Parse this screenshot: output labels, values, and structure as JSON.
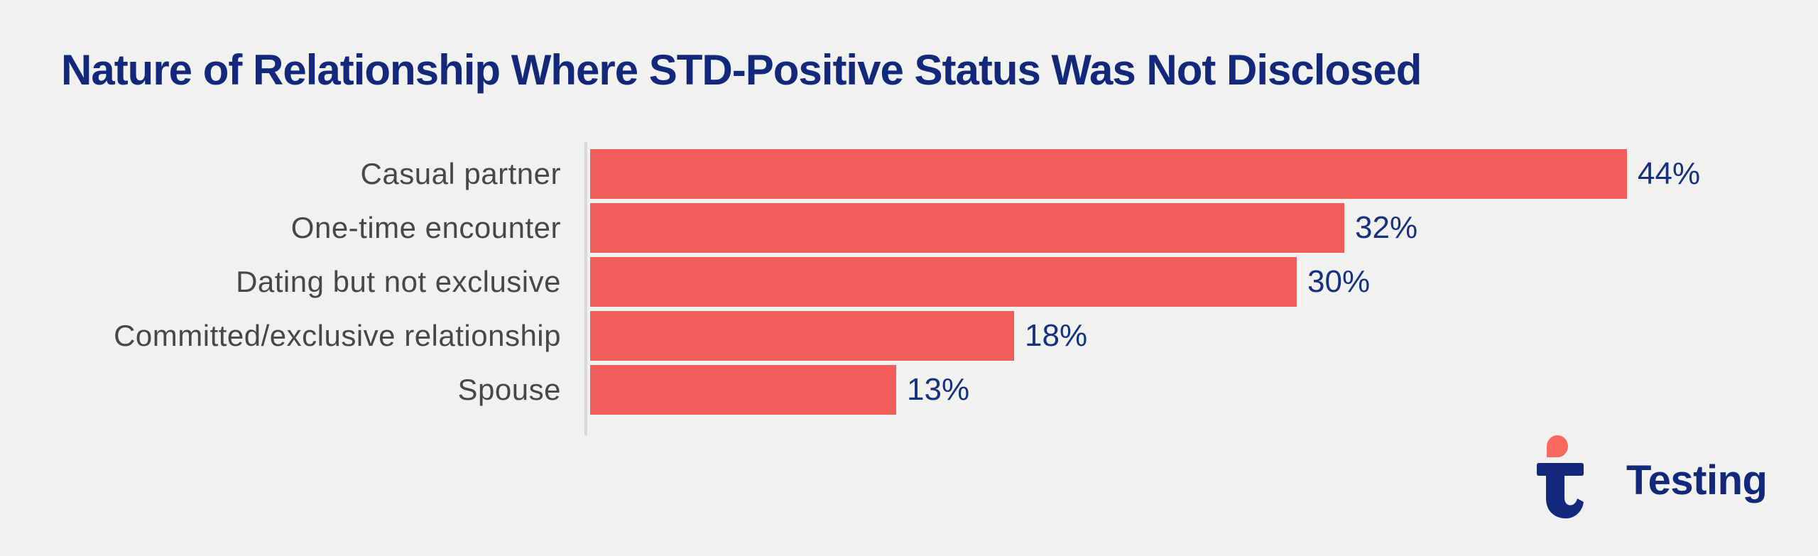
{
  "title": "Nature of Relationship Where STD-Positive Status Was Not Disclosed",
  "chart_data": {
    "type": "bar",
    "orientation": "horizontal",
    "title": "Nature of Relationship Where STD-Positive Status Was Not Disclosed",
    "categories": [
      "Casual partner",
      "One-time encounter",
      "Dating but not exclusive",
      "Committed/exclusive relationship",
      "Spouse"
    ],
    "values": [
      44,
      32,
      30,
      18,
      13
    ],
    "value_labels": [
      "44%",
      "32%",
      "30%",
      "18%",
      "13%"
    ],
    "xlabel": "",
    "ylabel": "",
    "xlim": [
      0,
      48
    ],
    "grid": false,
    "legend": false,
    "bars_sorted_descending": true
  },
  "colors": {
    "background": "#f1f1f0",
    "bar": "#f05d5b",
    "title_navy": "#13287a",
    "value_label_navy": "#16317e",
    "category_label_gray": "#474747",
    "axis_line": "#d9d9d8",
    "logo_navy": "#13287a",
    "logo_coral": "#fa695f"
  },
  "branding": {
    "logo_text": "Testing"
  }
}
